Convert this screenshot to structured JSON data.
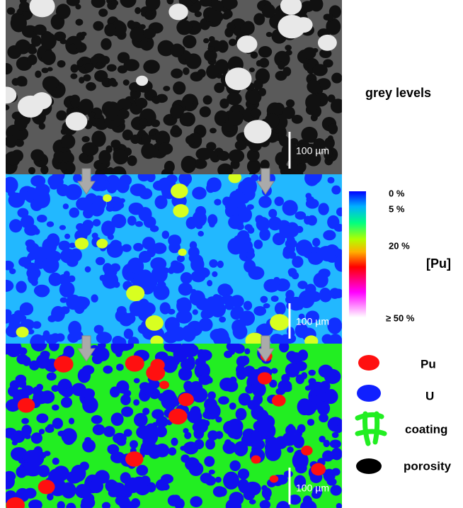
{
  "grey_label": "grey levels",
  "scale_bars": [
    "100 µm",
    "100 µm",
    "100 µm"
  ],
  "colorbar": {
    "title": "[Pu]",
    "ticks": [
      "0 %",
      "5 %",
      "20 %",
      "≥ 50 %"
    ]
  },
  "legend": [
    "Pu",
    "U",
    "coating",
    "porosity"
  ]
}
